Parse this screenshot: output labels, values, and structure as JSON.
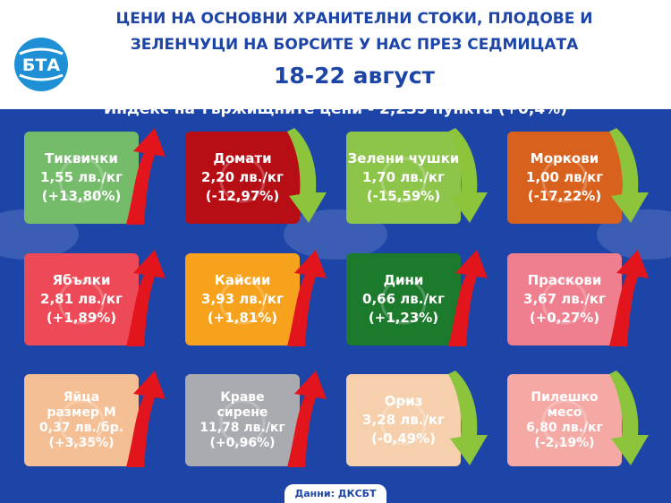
{
  "header": {
    "title_line1": "ЦЕНИ НА ОСНОВНИ ХРАНИТЕЛНИ СТОКИ, ПЛОДОВЕ И",
    "title_line2": "ЗЕЛЕНЧУЦИ НА БОРСИТЕ У НАС ПРЕЗ СЕДМИЦАТА",
    "dates": "18-22 август",
    "logo_text": "БТА"
  },
  "index_line": "Индекс на тържищните цени - 2,235 пункта (+0,4%)",
  "colors": {
    "background": "#1d45a8",
    "arrow_up": "#e2141c",
    "arrow_down": "#8cc43c"
  },
  "products": [
    {
      "name": "Тиквички",
      "price": "1,55 лв./кг",
      "change": "(+13,80%)",
      "direction": "up",
      "color": "#74bb6a",
      "icon": "zucchini-icon"
    },
    {
      "name": "Домати",
      "price": "2,20 лв./кг",
      "change": "(-12,97%)",
      "direction": "down",
      "color": "#b70e16",
      "icon": "tomato-icon"
    },
    {
      "name": "Зелени чушки",
      "price": "1,70 лв./кг",
      "change": "(-15,59%)",
      "direction": "down",
      "color": "#8dc44a",
      "icon": "pepper-icon"
    },
    {
      "name": "Моркови",
      "price": "1,00 лв/кг",
      "change": "(-17,22%)",
      "direction": "down",
      "color": "#d9611e",
      "icon": "carrot-icon"
    },
    {
      "name": "Ябълки",
      "price": "2,81 лв./кг",
      "change": "(+1,89%)",
      "direction": "up",
      "color": "#ee4956",
      "icon": "apple-icon"
    },
    {
      "name": "Кайсии",
      "price": "3,93 лв./кг",
      "change": "(+1,81%)",
      "direction": "up",
      "color": "#f7a21c",
      "icon": "apricot-icon"
    },
    {
      "name": "Дини",
      "price": "0,66 лв./кг",
      "change": "(+1,23%)",
      "direction": "up",
      "color": "#1c7a2c",
      "icon": "watermelon-icon"
    },
    {
      "name": "Праскови",
      "price": "3,67 лв./кг",
      "change": "(+0,27%)",
      "direction": "up",
      "color": "#ef7f8e",
      "icon": "peach-icon"
    },
    {
      "name": "Яйца",
      "name2": "размер М",
      "price": "0,37 лв./бр.",
      "change": "(+3,35%)",
      "direction": "up",
      "color": "#f5bf95",
      "icon": "egg-icon"
    },
    {
      "name": "Краве",
      "name2": "сирене",
      "price": "11,78 лв./кг",
      "change": "(+0,96%)",
      "direction": "up",
      "color": "#a9abb1",
      "icon": "cheese-icon"
    },
    {
      "name": "Ориз",
      "price": "3,28 лв./кг",
      "change": "(-0,49%)",
      "direction": "down",
      "color": "#f6d0ad",
      "icon": "rice-icon"
    },
    {
      "name": "Пилешко",
      "name2": "месо",
      "price": "6,80 лв./кг",
      "change": "(-2,19%)",
      "direction": "down",
      "color": "#f4a9a5",
      "icon": "chicken-icon"
    }
  ],
  "footer": "Данни: ДКСБТ"
}
